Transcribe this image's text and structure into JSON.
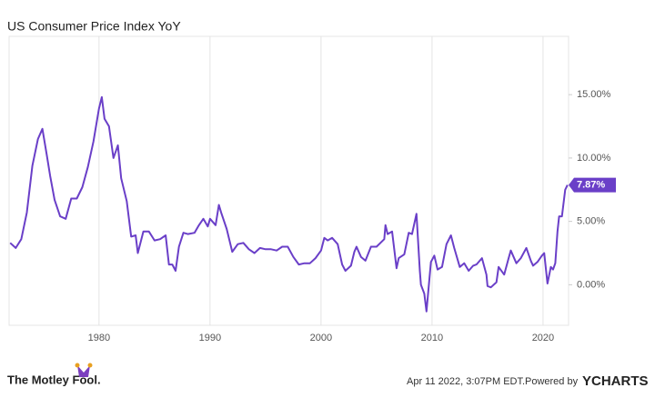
{
  "chart_data": {
    "type": "line",
    "title": "US Consumer Price Index YoY",
    "color": "#6a3fc8",
    "x": [
      1972.0,
      1972.5,
      1973.0,
      1973.5,
      1974.0,
      1974.5,
      1974.9,
      1975.3,
      1975.6,
      1976.0,
      1976.5,
      1977.0,
      1977.5,
      1978.0,
      1978.5,
      1979.0,
      1979.5,
      1980.0,
      1980.25,
      1980.5,
      1980.9,
      1981.3,
      1981.7,
      1982.0,
      1982.5,
      1982.9,
      1983.3,
      1983.5,
      1984.0,
      1984.5,
      1985.0,
      1985.5,
      1986.0,
      1986.3,
      1986.6,
      1986.9,
      1987.2,
      1987.6,
      1988.0,
      1988.6,
      1989.0,
      1989.4,
      1989.8,
      1990.0,
      1990.5,
      1990.8,
      1991.0,
      1991.5,
      1992.0,
      1992.5,
      1993.0,
      1993.5,
      1994.0,
      1994.5,
      1995.0,
      1995.5,
      1996.0,
      1996.5,
      1997.0,
      1997.5,
      1998.0,
      1998.5,
      1999.0,
      1999.5,
      2000.0,
      2000.3,
      2000.6,
      2001.0,
      2001.5,
      2001.9,
      2002.2,
      2002.7,
      2003.0,
      2003.2,
      2003.6,
      2004.0,
      2004.5,
      2005.0,
      2005.7,
      2005.8,
      2006.0,
      2006.4,
      2006.8,
      2007.0,
      2007.5,
      2007.9,
      2008.2,
      2008.6,
      2008.9,
      2009.0,
      2009.3,
      2009.5,
      2009.9,
      2010.2,
      2010.5,
      2010.9,
      2011.3,
      2011.7,
      2012.0,
      2012.5,
      2012.9,
      2013.3,
      2013.7,
      2014.0,
      2014.5,
      2014.9,
      2015.0,
      2015.3,
      2015.8,
      2016.0,
      2016.5,
      2016.9,
      2017.1,
      2017.6,
      2018.0,
      2018.5,
      2018.9,
      2019.1,
      2019.5,
      2019.9,
      2020.1,
      2020.4,
      2020.7,
      2020.9,
      2021.1,
      2021.3,
      2021.45,
      2021.7,
      2021.9,
      2022.0,
      2022.2
    ],
    "values": [
      3.3,
      2.9,
      3.6,
      5.7,
      9.4,
      11.5,
      12.3,
      10.2,
      8.6,
      6.7,
      5.4,
      5.2,
      6.8,
      6.8,
      7.7,
      9.3,
      11.3,
      13.9,
      14.8,
      13.1,
      12.5,
      10.0,
      11.0,
      8.4,
      6.6,
      3.8,
      3.9,
      2.5,
      4.2,
      4.2,
      3.5,
      3.6,
      3.9,
      1.6,
      1.6,
      1.1,
      3.0,
      4.1,
      4.0,
      4.1,
      4.7,
      5.2,
      4.6,
      5.2,
      4.7,
      6.3,
      5.7,
      4.4,
      2.6,
      3.2,
      3.3,
      2.8,
      2.5,
      2.9,
      2.8,
      2.8,
      2.7,
      3.0,
      3.0,
      2.2,
      1.6,
      1.7,
      1.7,
      2.1,
      2.7,
      3.7,
      3.5,
      3.7,
      3.2,
      1.6,
      1.1,
      1.5,
      2.6,
      3.0,
      2.2,
      1.9,
      3.0,
      3.0,
      3.6,
      4.7,
      4.0,
      4.2,
      1.3,
      2.1,
      2.4,
      4.1,
      4.0,
      5.6,
      1.1,
      0.0,
      -0.7,
      -2.1,
      1.8,
      2.3,
      1.2,
      1.4,
      3.2,
      3.9,
      2.9,
      1.4,
      1.7,
      1.1,
      1.5,
      1.6,
      2.1,
      0.8,
      -0.1,
      -0.2,
      0.2,
      1.4,
      0.8,
      2.1,
      2.7,
      1.7,
      2.1,
      2.9,
      1.9,
      1.5,
      1.8,
      2.3,
      2.5,
      0.1,
      1.4,
      1.2,
      1.7,
      4.2,
      5.4,
      5.4,
      6.8,
      7.5,
      7.87
    ],
    "xlim": [
      1971.9,
      2022.3
    ],
    "xticks": [
      1980,
      1990,
      2000,
      2010,
      2020
    ],
    "ylim": [
      -3.2,
      19.6
    ],
    "yticks": [
      {
        "value": 0,
        "label": "0.00%"
      },
      {
        "value": 5,
        "label": "5.00%"
      },
      {
        "value": 10,
        "label": "10.00%"
      },
      {
        "value": 15,
        "label": "15.00%"
      }
    ],
    "grid": "x",
    "annotations": [
      {
        "y": 7.87,
        "label": "7.87%"
      }
    ]
  },
  "footer": {
    "brand": "The Motley Fool.",
    "timestamp": "Apr 11 2022, 3:07PM EDT.",
    "powered_by": "Powered by",
    "provider": "YCHARTS"
  }
}
